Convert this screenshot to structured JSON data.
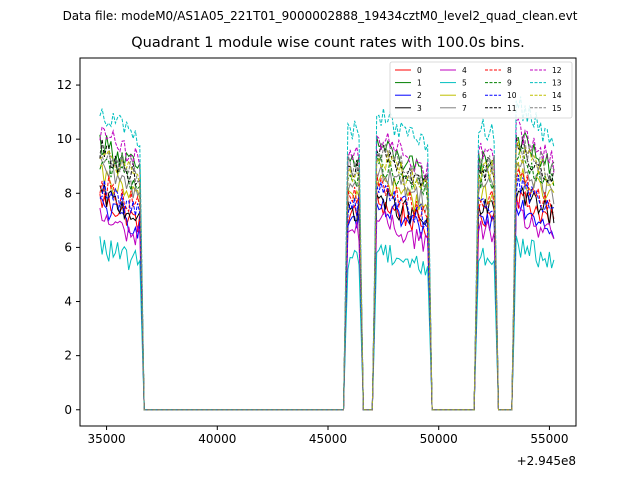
{
  "figure": {
    "suptitle": "Data file: modeM0/AS1A05_221T01_9000002888_19434cztM0_level2_quad_clean.evt"
  },
  "chart_data": {
    "type": "line",
    "title": "Quadrant 1 module wise count rates with 100.0s bins.",
    "xlabel": "",
    "ylabel": "",
    "x_offset_label": "+2.945e8",
    "xlim": [
      33800,
      56200
    ],
    "ylim": [
      -0.6,
      13.0
    ],
    "x_ticks": [
      35000,
      40000,
      45000,
      50000,
      55000
    ],
    "x_tick_labels": [
      "35000",
      "40000",
      "45000",
      "50000",
      "55000"
    ],
    "y_ticks": [
      0,
      2,
      4,
      6,
      8,
      10,
      12
    ],
    "y_tick_labels": [
      "0",
      "2",
      "4",
      "6",
      "8",
      "10",
      "12"
    ],
    "grid": false,
    "legend_position": "top-right",
    "segments": [
      {
        "start": 34700,
        "end": 36500,
        "level": "ON"
      },
      {
        "start": 45900,
        "end": 46400,
        "level": "ON"
      },
      {
        "start": 47200,
        "end": 49500,
        "level": "ON"
      },
      {
        "start": 51800,
        "end": 52500,
        "level": "ON"
      },
      {
        "start": 53500,
        "end": 55200,
        "level": "ON"
      }
    ],
    "series": [
      {
        "name": "0",
        "color": "#ff0000",
        "dashed": false,
        "level": 7.2
      },
      {
        "name": "1",
        "color": "#008000",
        "dashed": false,
        "level": 9.2
      },
      {
        "name": "2",
        "color": "#0000ff",
        "dashed": false,
        "level": 7.0
      },
      {
        "name": "3",
        "color": "#000000",
        "dashed": false,
        "level": 7.4
      },
      {
        "name": "4",
        "color": "#bf00bf",
        "dashed": false,
        "level": 6.6
      },
      {
        "name": "5",
        "color": "#00bfbf",
        "dashed": false,
        "level": 5.6
      },
      {
        "name": "6",
        "color": "#bfbf00",
        "dashed": false,
        "level": 8.0
      },
      {
        "name": "7",
        "color": "#808080",
        "dashed": false,
        "level": 8.3
      },
      {
        "name": "8",
        "color": "#ff0000",
        "dashed": true,
        "level": 7.8
      },
      {
        "name": "9",
        "color": "#008000",
        "dashed": true,
        "level": 8.6
      },
      {
        "name": "10",
        "color": "#0000ff",
        "dashed": true,
        "level": 7.6
      },
      {
        "name": "11",
        "color": "#000000",
        "dashed": true,
        "level": 8.9
      },
      {
        "name": "12",
        "color": "#bf00bf",
        "dashed": true,
        "level": 9.5
      },
      {
        "name": "13",
        "color": "#00bfbf",
        "dashed": true,
        "level": 10.3
      },
      {
        "name": "14",
        "color": "#bfbf00",
        "dashed": true,
        "level": 8.8
      },
      {
        "name": "15",
        "color": "#808080",
        "dashed": true,
        "level": 9.0
      }
    ]
  }
}
